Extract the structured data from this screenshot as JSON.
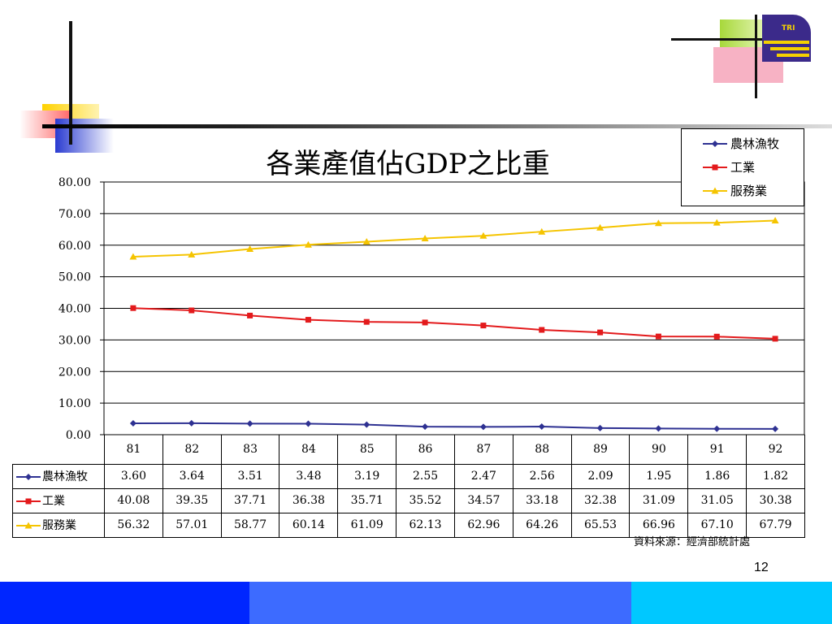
{
  "slide": {
    "page_number": "12",
    "source": "資料來源：經濟部統計處",
    "logo_text": "TRI"
  },
  "colors": {
    "agri": "#2e3192",
    "industry": "#e31a1c",
    "service": "#f5c400",
    "bottom_bar": [
      "#0026ff",
      "#3d6bff",
      "#00c8ff"
    ]
  },
  "chart_data": {
    "type": "line",
    "title": "各業產值佔GDP之比重",
    "categories": [
      "81",
      "82",
      "83",
      "84",
      "85",
      "86",
      "87",
      "88",
      "89",
      "90",
      "91",
      "92"
    ],
    "ylim": [
      0,
      80
    ],
    "yticks": [
      "80.00",
      "70.00",
      "60.00",
      "50.00",
      "40.00",
      "30.00",
      "20.00",
      "10.00",
      "0.00"
    ],
    "grid": true,
    "legend_position": "top-right",
    "series": [
      {
        "name": "農林漁牧",
        "marker": "diamond",
        "color": "#2e3192",
        "values": [
          "3.60",
          "3.64",
          "3.51",
          "3.48",
          "3.19",
          "2.55",
          "2.47",
          "2.56",
          "2.09",
          "1.95",
          "1.86",
          "1.82"
        ]
      },
      {
        "name": "工業",
        "marker": "square",
        "color": "#e31a1c",
        "values": [
          "40.08",
          "39.35",
          "37.71",
          "36.38",
          "35.71",
          "35.52",
          "34.57",
          "33.18",
          "32.38",
          "31.09",
          "31.05",
          "30.38"
        ]
      },
      {
        "name": "服務業",
        "marker": "triangle",
        "color": "#f5c400",
        "values": [
          "56.32",
          "57.01",
          "58.77",
          "60.14",
          "61.09",
          "62.13",
          "62.96",
          "64.26",
          "65.53",
          "66.96",
          "67.10",
          "67.79"
        ]
      }
    ]
  }
}
